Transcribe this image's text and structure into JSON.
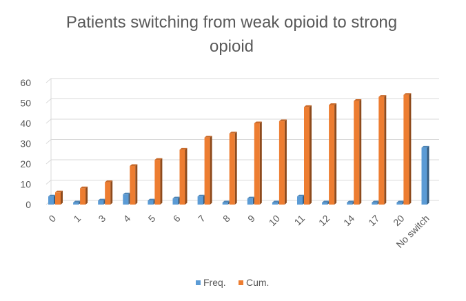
{
  "chart_data": {
    "type": "bar",
    "title_lines": [
      "Patients switching from weak opioid to strong",
      "opioid"
    ],
    "categories": [
      "0",
      "1",
      "3",
      "4",
      "5",
      "6",
      "7",
      "8",
      "9",
      "10",
      "11",
      "12",
      "14",
      "17",
      "20",
      "No switch"
    ],
    "series": [
      {
        "name": "Freq.",
        "color": "#5B9BD5",
        "values": [
          4,
          1,
          2,
          5,
          2,
          3,
          4,
          1,
          3,
          1,
          4,
          1,
          1,
          1,
          1,
          28
        ]
      },
      {
        "name": "Cum.",
        "color": "#ED7D31",
        "values": [
          6,
          8,
          11,
          19,
          22,
          27,
          33,
          35,
          40,
          41,
          48,
          49,
          51,
          53,
          54,
          null
        ]
      }
    ],
    "ylim": [
      0,
      60
    ],
    "yticks": [
      0,
      10,
      20,
      30,
      40,
      50,
      60
    ],
    "grid": true,
    "legend_position": "bottom",
    "style": "3d-column"
  }
}
